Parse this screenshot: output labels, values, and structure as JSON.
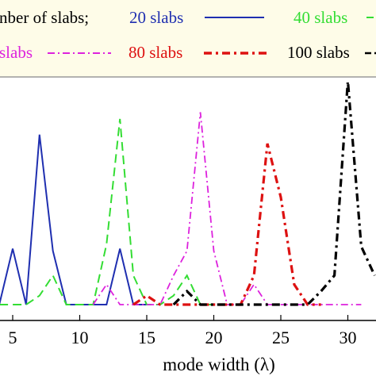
{
  "chart_data": {
    "type": "line",
    "title": "",
    "xlabel": "mode width (λ)",
    "ylabel": "",
    "xlim": [
      4,
      31.5
    ],
    "ylim": [
      0,
      1
    ],
    "x_ticks": [
      5,
      10,
      15,
      20,
      25,
      30
    ],
    "grid": false,
    "legend": {
      "placement": "top",
      "entries": [
        "nber of slabs;",
        "20 slabs",
        "40 slabs",
        "slabs",
        "80 slabs",
        "100 slabs"
      ]
    },
    "series": [
      {
        "name": "20 slabs",
        "color": "#1f2fb0",
        "dash": "solid",
        "x": [
          4,
          5,
          6,
          7,
          8,
          9,
          10,
          11,
          12,
          13,
          14,
          15
        ],
        "y": [
          0.0,
          0.25,
          0.0,
          0.76,
          0.24,
          0.0,
          0.0,
          0.0,
          0.0,
          0.25,
          0.0,
          0.0
        ]
      },
      {
        "name": "40 slabs",
        "color": "#33dd33",
        "dash": "long-dash",
        "x": [
          4,
          5,
          6,
          7,
          8,
          9,
          10,
          11,
          12,
          13,
          14,
          15,
          16,
          17,
          18,
          19,
          20
        ],
        "y": [
          0.0,
          0.0,
          0.0,
          0.04,
          0.13,
          0.0,
          0.0,
          0.0,
          0.27,
          0.83,
          0.13,
          0.0,
          0.0,
          0.04,
          0.13,
          0.0,
          0.0
        ]
      },
      {
        "name": "slabs",
        "color": "#dd22dd",
        "dash": "dash-dot",
        "x": [
          11,
          12,
          13,
          14,
          15,
          16,
          17,
          18,
          19,
          20,
          21,
          22,
          23,
          24,
          25,
          26,
          27,
          28,
          29,
          30,
          31
        ],
        "y": [
          0.0,
          0.09,
          0.0,
          0.0,
          0.0,
          0.0,
          0.13,
          0.24,
          0.86,
          0.24,
          0.0,
          0.0,
          0.09,
          0.0,
          0.0,
          0.0,
          0.0,
          0.0,
          0.0,
          0.0,
          0.0
        ]
      },
      {
        "name": "80 slabs",
        "color": "#dd1111",
        "dash": "heavy-dash-dot",
        "x": [
          14,
          15,
          16,
          17,
          18,
          19,
          20,
          21,
          22,
          23,
          24,
          25,
          26,
          27,
          28
        ],
        "y": [
          0.0,
          0.04,
          0.0,
          0.0,
          0.0,
          0.0,
          0.0,
          0.0,
          0.0,
          0.13,
          0.72,
          0.48,
          0.09,
          0.0,
          0.0
        ]
      },
      {
        "name": "100 slabs",
        "color": "#000000",
        "dash": "heavy-dash-dot",
        "x": [
          17,
          18,
          19,
          20,
          21,
          22,
          23,
          24,
          25,
          26,
          27,
          28,
          29,
          30,
          31,
          32
        ],
        "y": [
          0.0,
          0.06,
          0.0,
          0.0,
          0.0,
          0.0,
          0.0,
          0.0,
          0.0,
          0.0,
          0.0,
          0.06,
          0.13,
          1.0,
          0.26,
          0.13
        ]
      }
    ]
  },
  "colors": {
    "legend_background": "#fefce8",
    "legend_border": "#9a9a9a",
    "axis": "#000000"
  }
}
